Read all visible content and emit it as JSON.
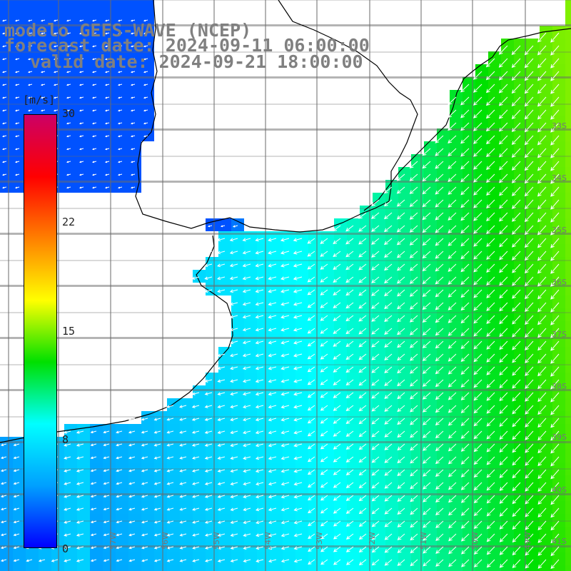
{
  "title": {
    "line1": "modelo GEFS-WAVE (NCEP)",
    "line2": "forecast date: 2024-09-11 06:00:00",
    "line3": "valid date: 2024-09-21 18:00:00"
  },
  "colorbar": {
    "unit": "[m/s]",
    "ticks": [
      "30",
      "22",
      "15",
      "8",
      "0"
    ],
    "min": 0,
    "max": 30,
    "stops": [
      "#0000ff",
      "#00a0ff",
      "#00ffff",
      "#00e000",
      "#ffff00",
      "#ff8000",
      "#ff0000",
      "#cc0066"
    ]
  },
  "lat_labels": [
    "33S",
    "34S",
    "35S",
    "36S",
    "37S",
    "38S",
    "39S",
    "40S",
    "41S"
  ],
  "lon_labels": [
    "57W",
    "56W",
    "55W",
    "54W",
    "53W",
    "52W",
    "51W",
    "50W",
    "49W"
  ],
  "wind": {
    "direction": "from north-east toward south-west",
    "range_ms": [
      3,
      14
    ]
  }
}
